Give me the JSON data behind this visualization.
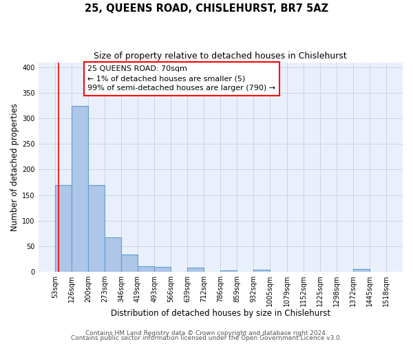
{
  "title": "25, QUEENS ROAD, CHISLEHURST, BR7 5AZ",
  "subtitle": "Size of property relative to detached houses in Chislehurst",
  "xlabel": "Distribution of detached houses by size in Chislehurst",
  "ylabel": "Number of detached properties",
  "bar_edges": [
    53,
    126,
    200,
    273,
    346,
    419,
    493,
    566,
    639,
    712,
    786,
    859,
    932,
    1005,
    1079,
    1152,
    1225,
    1298,
    1372,
    1445,
    1518
  ],
  "bar_heights": [
    170,
    325,
    170,
    67,
    33,
    11,
    9,
    0,
    8,
    0,
    3,
    0,
    4,
    0,
    0,
    0,
    0,
    0,
    5,
    0
  ],
  "bar_color": "#aec6e8",
  "bar_edge_color": "#5a9fd4",
  "bar_linewidth": 0.8,
  "red_line_x": 70,
  "ylim": [
    0,
    410
  ],
  "yticks": [
    0,
    50,
    100,
    150,
    200,
    250,
    300,
    350,
    400
  ],
  "bg_color": "#eaf0fb",
  "grid_color": "#c8d4ea",
  "annotation_title": "25 QUEENS ROAD: 70sqm",
  "annotation_line1": "← 1% of detached houses are smaller (5)",
  "annotation_line2": "99% of semi-detached houses are larger (790) →",
  "footer_line1": "Contains HM Land Registry data © Crown copyright and database right 2024.",
  "footer_line2": "Contains public sector information licensed under the Open Government Licence v3.0.",
  "title_fontsize": 10.5,
  "subtitle_fontsize": 9,
  "xlabel_fontsize": 8.5,
  "ylabel_fontsize": 8.5,
  "tick_fontsize": 7,
  "annotation_fontsize": 8,
  "footer_fontsize": 6.5
}
